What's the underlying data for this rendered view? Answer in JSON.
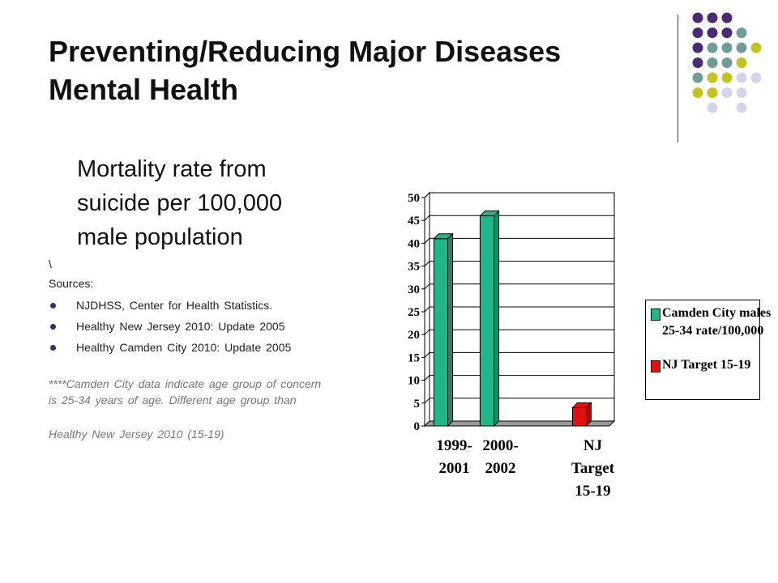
{
  "slide": {
    "title_line1": "Preventing/Reducing Major Diseases",
    "title_line2": "Mental Health",
    "heading_lines": [
      "Mortality rate from",
      "suicide per 100,000",
      "male population"
    ],
    "backslash": "\\",
    "sources_label": "Sources:",
    "sources": [
      "NJDHSS, Center for Health Statistics.",
      "Healthy New Jersey 2010:  Update 2005",
      "Healthy Camden City 2010:  Update 2005"
    ],
    "note_lines": [
      "****Camden City data indicate age group of concern",
      "     is 25-34  years of age.  Different age group than",
      "     Healthy New Jersey 2010  (15-19)"
    ]
  },
  "colors": {
    "purple": "#4b2a72",
    "teal": "#6f9c98",
    "olive": "#c2c322",
    "lavender": "#d4d4e8",
    "series_green": "#21b58a",
    "series_red": "#e01010"
  },
  "chart_data": {
    "type": "bar",
    "categories": [
      [
        "1999-",
        "2001"
      ],
      [
        "2000-",
        "2002"
      ],
      [
        ""
      ],
      [
        "NJ",
        "Target",
        "15-19"
      ]
    ],
    "series": [
      {
        "name": "Camden City males 25-34 rate/100,000",
        "values": [
          41,
          46,
          null,
          null
        ]
      },
      {
        "name": "NJ Target 15-19",
        "values": [
          null,
          null,
          null,
          4
        ]
      }
    ],
    "ylim": [
      0,
      50
    ],
    "yticks": [
      0,
      5,
      10,
      15,
      20,
      25,
      30,
      35,
      40,
      45,
      50
    ],
    "grid": true,
    "legend_position": "right",
    "legend": [
      {
        "lines": [
          "Camden City males",
          "25-34 rate/100,000"
        ],
        "color": "#21b58a"
      },
      {
        "lines": [
          "NJ Target 15-19"
        ],
        "color": "#e01010"
      }
    ]
  }
}
